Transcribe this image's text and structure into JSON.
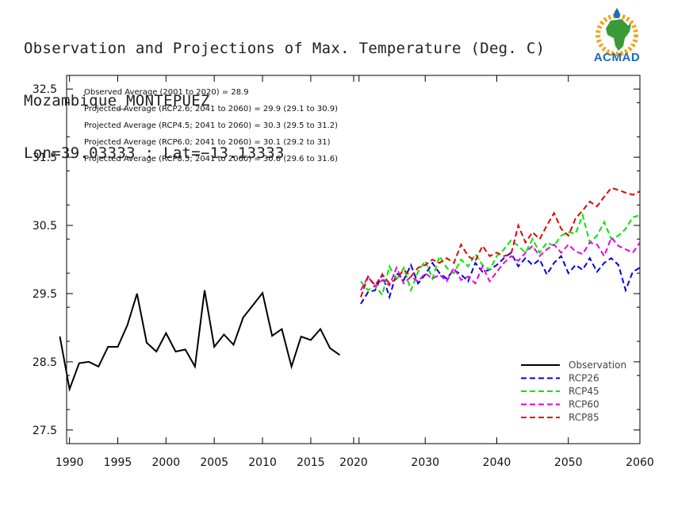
{
  "header": {
    "title": "Observation and Projections of Max. Temperature (Deg. C)",
    "station": "Mozambique_MONTEPUEZ",
    "coords": "Lon=39.03333 : Lat=−13.13333"
  },
  "logo": {
    "text": "ACMAD"
  },
  "annotations": [
    "Observed Average (2001 to 2020) = 28.9",
    "Projected Average (RCP2.6; 2041 to 2060) = 29.9 (29.1 to 30.9)",
    "Projected Average (RCP4.5; 2041 to 2060) = 30.3 (29.5 to 31.2)",
    "Projected Average (RCP6.0; 2041 to 2060) = 30.1 (29.2 to 31)",
    "Projected Average (RCP8.5; 2041 to 2060) = 30.6 (29.6 to 31.6)"
  ],
  "chart_data": {
    "type": "line",
    "xlim": [
      1990,
      2060
    ],
    "ylim": [
      27.3,
      32.7
    ],
    "yticks": [
      27.5,
      28.5,
      29.5,
      30.5,
      31.5,
      32.5
    ],
    "ytick_labels": [
      "27.5",
      "28.5",
      "29.5",
      "30.5",
      "31.5",
      "32.5"
    ],
    "xticks_left": [
      1990,
      1995,
      2000,
      2005,
      2010,
      2015,
      2020
    ],
    "xticks_right": [
      2020,
      2030,
      2040,
      2050,
      2060
    ],
    "grid": false,
    "legend_position": "bottom-right",
    "series": [
      {
        "name": "Observation",
        "color": "#000000",
        "dashed": false,
        "segment": "left",
        "x": [
          1989,
          1990,
          1991,
          1992,
          1993,
          1994,
          1995,
          1996,
          1997,
          1998,
          1999,
          2000,
          2001,
          2002,
          2003,
          2004,
          2005,
          2006,
          2007,
          2008,
          2009,
          2010,
          2011,
          2012,
          2013,
          2014,
          2015,
          2016,
          2017,
          2018,
          2019
        ],
        "values": [
          28.87,
          28.1,
          28.48,
          28.5,
          28.43,
          28.72,
          28.72,
          29.04,
          29.5,
          28.78,
          28.65,
          28.92,
          28.65,
          28.68,
          28.43,
          29.55,
          28.72,
          28.9,
          28.75,
          29.15,
          29.33,
          29.51,
          28.88,
          28.98,
          28.43,
          28.87,
          28.82,
          28.98,
          28.7,
          28.6,
          null
        ]
      },
      {
        "name": "RCP26",
        "color": "#0000e6",
        "dashed": true,
        "segment": "right",
        "x": [
          2021,
          2022,
          2023,
          2024,
          2025,
          2026,
          2027,
          2028,
          2029,
          2030,
          2031,
          2032,
          2033,
          2034,
          2035,
          2036,
          2037,
          2038,
          2039,
          2040,
          2041,
          2042,
          2043,
          2044,
          2045,
          2046,
          2047,
          2048,
          2049,
          2050,
          2051,
          2052,
          2053,
          2054,
          2055,
          2056,
          2057,
          2058,
          2059,
          2060
        ],
        "values": [
          29.35,
          29.52,
          29.55,
          29.78,
          29.45,
          29.8,
          29.7,
          29.92,
          29.65,
          29.78,
          29.95,
          29.8,
          29.72,
          29.85,
          29.78,
          29.68,
          29.95,
          29.82,
          29.85,
          29.92,
          30.02,
          30.1,
          29.9,
          30.02,
          29.92,
          30.0,
          29.78,
          29.95,
          30.05,
          29.8,
          29.92,
          29.85,
          30.02,
          29.82,
          29.95,
          30.02,
          29.92,
          29.55,
          29.82,
          29.88
        ]
      },
      {
        "name": "RCP45",
        "color": "#00e600",
        "dashed": true,
        "segment": "right",
        "x": [
          2021,
          2022,
          2023,
          2024,
          2025,
          2026,
          2027,
          2028,
          2029,
          2030,
          2031,
          2032,
          2033,
          2034,
          2035,
          2036,
          2037,
          2038,
          2039,
          2040,
          2041,
          2042,
          2043,
          2044,
          2045,
          2046,
          2047,
          2048,
          2049,
          2050,
          2051,
          2052,
          2053,
          2054,
          2055,
          2056,
          2057,
          2058,
          2059,
          2060
        ],
        "values": [
          29.68,
          29.55,
          29.62,
          29.48,
          29.9,
          29.7,
          29.88,
          29.55,
          29.82,
          29.98,
          29.72,
          30.05,
          29.88,
          29.8,
          30.0,
          29.9,
          30.08,
          29.92,
          29.85,
          30.05,
          30.15,
          30.28,
          30.2,
          30.1,
          30.3,
          30.1,
          30.25,
          30.2,
          30.35,
          30.4,
          30.38,
          30.65,
          30.25,
          30.35,
          30.55,
          30.3,
          30.35,
          30.45,
          30.62,
          30.65
        ]
      },
      {
        "name": "RCP60",
        "color": "#e600e6",
        "dashed": true,
        "segment": "right",
        "x": [
          2021,
          2022,
          2023,
          2024,
          2025,
          2026,
          2027,
          2028,
          2029,
          2030,
          2031,
          2032,
          2033,
          2034,
          2035,
          2036,
          2037,
          2038,
          2039,
          2040,
          2041,
          2042,
          2043,
          2044,
          2045,
          2046,
          2047,
          2048,
          2049,
          2050,
          2051,
          2052,
          2053,
          2054,
          2055,
          2056,
          2057,
          2058,
          2059,
          2060
        ],
        "values": [
          29.55,
          29.75,
          29.6,
          29.7,
          29.62,
          29.88,
          29.65,
          29.75,
          29.68,
          29.8,
          29.72,
          29.78,
          29.68,
          29.88,
          29.7,
          29.75,
          29.65,
          29.9,
          29.68,
          29.82,
          29.95,
          30.05,
          29.98,
          30.1,
          30.2,
          30.05,
          30.15,
          30.22,
          30.1,
          30.22,
          30.12,
          30.08,
          30.25,
          30.22,
          30.05,
          30.32,
          30.2,
          30.15,
          30.1,
          30.25
        ]
      },
      {
        "name": "RCP85",
        "color": "#e60000",
        "dashed": true,
        "segment": "right",
        "x": [
          2021,
          2022,
          2023,
          2024,
          2025,
          2026,
          2027,
          2028,
          2029,
          2030,
          2031,
          2032,
          2033,
          2034,
          2035,
          2036,
          2037,
          2038,
          2039,
          2040,
          2041,
          2042,
          2043,
          2044,
          2045,
          2046,
          2047,
          2048,
          2049,
          2050,
          2051,
          2052,
          2053,
          2054,
          2055,
          2056,
          2057,
          2058,
          2059,
          2060
        ],
        "values": [
          29.45,
          29.75,
          29.62,
          29.78,
          29.65,
          29.72,
          29.85,
          29.75,
          29.88,
          29.92,
          30.0,
          29.95,
          30.02,
          29.95,
          30.22,
          30.05,
          29.98,
          30.2,
          30.05,
          30.1,
          30.05,
          30.08,
          30.5,
          30.25,
          30.4,
          30.3,
          30.5,
          30.68,
          30.45,
          30.35,
          30.6,
          30.72,
          30.85,
          30.78,
          30.92,
          31.05,
          31.02,
          30.98,
          30.95,
          31.0
        ]
      }
    ]
  }
}
